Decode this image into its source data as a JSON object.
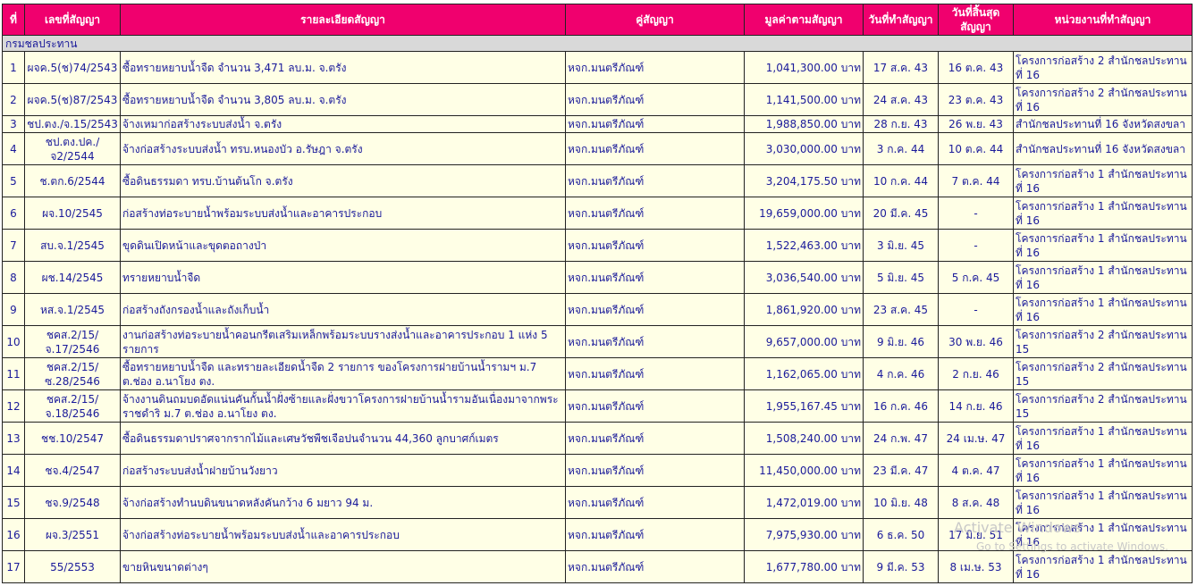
{
  "headers": [
    "ที่",
    "เลขที่สัญญา",
    "รายละเอียดสัญญา",
    "คู่สัญญา",
    "มูลค่าตามสัญญา",
    "วันที่ทำสัญญา",
    "วันที่สิ้นสุดสัญญา",
    "หน่วยงานที่ทำสัญญา"
  ],
  "group_label": "กรมชลประทาน",
  "rows": [
    {
      "no": "1",
      "contract": "ผจค.5(ช)74/2543",
      "detail": "ซื้อทรายหยาบน้ำจืด จำนวน 3,471 ลบ.ม. จ.ตรัง",
      "party": "หจก.มนตรีภัณฑ์",
      "value": "1,041,300.00 บาท",
      "start": "17 ส.ค. 43",
      "end": "16 ต.ค. 43",
      "agency": "โครงการก่อสร้าง 2 สำนักชลประทานที่ 16"
    },
    {
      "no": "2",
      "contract": "ผจค.5(ช)87/2543",
      "detail": "ซื้อทรายหยาบน้ำจืด จำนวน 3,805 ลบ.ม. จ.ตรัง",
      "party": "หจก.มนตรีภัณฑ์",
      "value": "1,141,500.00 บาท",
      "start": "24 ส.ค. 43",
      "end": "23 ต.ค. 43",
      "agency": "โครงการก่อสร้าง 2 สำนักชลประทานที่ 16"
    },
    {
      "no": "3",
      "contract": "ชป.ตง./จ.15/2543",
      "detail": "จ้างเหมาก่อสร้างระบบส่งน้ำ จ.ตรัง",
      "party": "หจก.มนตรีภัณฑ์",
      "value": "1,988,850.00 บาท",
      "start": "28 ก.ย. 43",
      "end": "26 พ.ย. 43",
      "agency": "สำนักชลประทานที่ 16 จังหวัดสงขลา"
    },
    {
      "no": "4",
      "contract": "ชป.ตง.ปค./จ2/2544",
      "detail": "จ้างก่อสร้างระบบส่งน้ำ ทรบ.หนองบัว อ.รัษฎา จ.ตรัง",
      "party": "หจก.มนตรีภัณฑ์",
      "value": "3,030,000.00 บาท",
      "start": "3 ก.ค. 44",
      "end": "10 ต.ค. 44",
      "agency": "สำนักชลประทานที่ 16 จังหวัดสงขลา"
    },
    {
      "no": "5",
      "contract": "ช.ตก.6/2544",
      "detail": "ซื้อดินธรรมดา ทรบ.บ้านต้นโก จ.ตรัง",
      "party": "หจก.มนตรีภัณฑ์",
      "value": "3,204,175.50 บาท",
      "start": "10 ก.ค. 44",
      "end": "7 ต.ค. 44",
      "agency": "โครงการก่อสร้าง 1 สำนักชลประทานที่ 16"
    },
    {
      "no": "6",
      "contract": "ผจ.10/2545",
      "detail": "ก่อสร้างท่อระบายน้ำพร้อมระบบส่งน้ำและอาคารประกอบ",
      "party": "หจก.มนตรีภัณฑ์",
      "value": "19,659,000.00 บาท",
      "start": "20 มี.ค. 45",
      "end": "-",
      "agency": "โครงการก่อสร้าง 1 สำนักชลประทานที่ 16"
    },
    {
      "no": "7",
      "contract": "สบ.จ.1/2545",
      "detail": "ขุดดินเปิดหน้าและขุดตอถางป่า",
      "party": "หจก.มนตรีภัณฑ์",
      "value": "1,522,463.00 บาท",
      "start": "3 มิ.ย. 45",
      "end": "-",
      "agency": "โครงการก่อสร้าง 1 สำนักชลประทานที่ 16"
    },
    {
      "no": "8",
      "contract": "ผช.14/2545",
      "detail": "ทรายหยาบน้ำจืด",
      "party": "หจก.มนตรีภัณฑ์",
      "value": "3,036,540.00 บาท",
      "start": "5 มิ.ย. 45",
      "end": "5 ก.ค. 45",
      "agency": "โครงการก่อสร้าง 1 สำนักชลประทานที่ 16"
    },
    {
      "no": "9",
      "contract": "หส.จ.1/2545",
      "detail": "ก่อสร้างถังกรองน้ำและถังเก็บน้ำ",
      "party": "หจก.มนตรีภัณฑ์",
      "value": "1,861,920.00 บาท",
      "start": "23 ส.ค. 45",
      "end": "-",
      "agency": "โครงการก่อสร้าง 1 สำนักชลประทานที่ 16"
    },
    {
      "no": "10",
      "contract": "ชคส.2/15/จ.17/2546",
      "detail": "งานก่อสร้างท่อระบายน้ำคอนกรีตเสริมเหล็กพร้อมระบบรางส่งน้ำและอาคารประกอบ 1 แห่ง 5 รายการ",
      "party": "หจก.มนตรีภัณฑ์",
      "value": "9,657,000.00 บาท",
      "start": "9 มิ.ย. 46",
      "end": "30 พ.ย. 46",
      "agency": "โครงการก่อสร้าง 2 สำนักชลประทาน 15"
    },
    {
      "no": "11",
      "contract": "ชคส.2/15/ซ.28/2546",
      "detail": "ซื้อทรายหยาบน้ำจืด และทรายละเอียดน้ำจืด 2 รายการ ของโครงการฝายบ้านน้ำรามฯ ม.7 ต.ช่อง อ.นาโยง ตง.",
      "party": "หจก.มนตรีภัณฑ์",
      "value": "1,162,065.00 บาท",
      "start": "4 ก.ค. 46",
      "end": "2 ก.ย. 46",
      "agency": "โครงการก่อสร้าง 2 สำนักชลประทาน 15"
    },
    {
      "no": "12",
      "contract": "ชคส.2/15/จ.18/2546",
      "detail": "จ้างงานดินถมบดอัดแน่นคันกั้นน้ำฝั่งซ้ายและฝั่งขวาโครงการฝายบ้านน้ำรามอันเนื่องมาจากพระราชดำริ ม.7 ต.ช่อง อ.นาโยง ตง.",
      "party": "หจก.มนตรีภัณฑ์",
      "value": "1,955,167.45 บาท",
      "start": "16 ก.ค. 46",
      "end": "14 ก.ย. 46",
      "agency": "โครงการก่อสร้าง 2 สำนักชลประทาน 15"
    },
    {
      "no": "13",
      "contract": "ชช.10/2547",
      "detail": "ซื้อดินธรรมดาปราศจากรากไม้และเศษวัชพืชเจือปนจำนวน 44,360 ลูกบาศก์เมตร",
      "party": "หจก.มนตรีภัณฑ์",
      "value": "1,508,240.00 บาท",
      "start": "24 ก.พ. 47",
      "end": "24 เม.ษ. 47",
      "agency": "โครงการก่อสร้าง 1 สำนักชลประทานที่ 16"
    },
    {
      "no": "14",
      "contract": "ชจ.4/2547",
      "detail": "ก่อสร้างระบบส่งน้ำฝายบ้านวังยาว",
      "party": "หจก.มนตรีภัณฑ์",
      "value": "11,450,000.00 บาท",
      "start": "23 มี.ค. 47",
      "end": "4 ต.ค. 47",
      "agency": "โครงการก่อสร้าง 1 สำนักชลประทานที่ 16"
    },
    {
      "no": "15",
      "contract": "ชจ.9/2548",
      "detail": "จ้างก่อสร้างทำนบดินขนาดหลังคันกว้าง 6 มยาว 94 ม.",
      "party": "หจก.มนตรีภัณฑ์",
      "value": "1,472,019.00 บาท",
      "start": "10 มิ.ย. 48",
      "end": "8 ส.ค. 48",
      "agency": "โครงการก่อสร้าง 1 สำนักชลประทานที่ 16"
    },
    {
      "no": "16",
      "contract": "ผจ.3/2551",
      "detail": "จ้างก่อสร้างท่อระบายน้ำพร้อมระบบส่งน้ำและอาคารประกอบ",
      "party": "หจก.มนตรีภัณฑ์",
      "value": "7,975,930.00 บาท",
      "start": "6 ธ.ค. 50",
      "end": "17 มิ.ย. 51",
      "agency": "โครงการก่อสร้าง 1 สำนักชลประทานที่ 16"
    },
    {
      "no": "17",
      "contract": "55/2553",
      "detail": "ขายหินขนาดต่างๆ",
      "party": "หจก.มนตรีภัณฑ์",
      "value": "1,677,780.00 บาท",
      "start": "9 มี.ค. 53",
      "end": "8 เม.ษ. 53",
      "agency": "โครงการก่อสร้าง 1 สำนักชลประทานที่ 16"
    }
  ],
  "watermark": {
    "line1": "Activate Windows",
    "line2": "Go to Settings to activate Windows."
  }
}
